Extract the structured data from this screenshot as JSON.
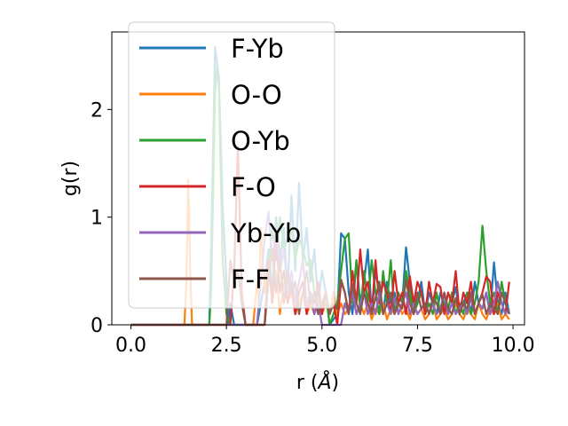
{
  "chart_data": {
    "type": "line",
    "title": "",
    "xlabel": "r (",
    "xlabel_unit": "Å",
    "xlabel_close": ")",
    "ylabel": "g(r)",
    "xlim": [
      -0.5,
      10.3
    ],
    "ylim": [
      0,
      2.72
    ],
    "xticks": [
      {
        "value": 0.0,
        "label": "0.0"
      },
      {
        "value": 2.5,
        "label": "2.5"
      },
      {
        "value": 5.0,
        "label": "5.0"
      },
      {
        "value": 7.5,
        "label": "7.5"
      },
      {
        "value": 10.0,
        "label": "10.0"
      }
    ],
    "yticks": [
      {
        "value": 0,
        "label": "0"
      },
      {
        "value": 1,
        "label": "1"
      },
      {
        "value": 2,
        "label": "2"
      }
    ],
    "grid": false,
    "legend_position": "upper-left",
    "series": [
      {
        "name": "F-Yb",
        "color": "#1f77b4",
        "x": [
          0.0,
          2.05,
          2.1,
          2.2,
          2.3,
          2.4,
          2.5,
          2.55,
          2.6,
          2.7,
          3.0,
          3.3,
          3.5,
          3.6,
          3.7,
          3.8,
          3.9,
          4.0,
          4.1,
          4.2,
          4.3,
          4.4,
          4.5,
          4.6,
          4.7,
          4.8,
          4.9,
          5.0,
          5.1,
          5.2,
          5.4,
          5.5,
          5.6,
          5.7,
          5.8,
          5.9,
          6.0,
          6.1,
          6.2,
          6.3,
          6.4,
          6.5,
          6.6,
          6.7,
          6.8,
          6.9,
          7.0,
          7.1,
          7.2,
          7.3,
          7.4,
          7.5,
          7.6,
          7.7,
          7.8,
          7.9,
          8.0,
          8.1,
          8.2,
          8.3,
          8.4,
          8.5,
          8.6,
          8.7,
          8.8,
          8.9,
          9.0,
          9.1,
          9.2,
          9.3,
          9.4,
          9.5,
          9.6,
          9.7,
          9.8,
          9.9
        ],
        "values": [
          0,
          0,
          0.7,
          2.58,
          2.3,
          1.1,
          0.4,
          0.0,
          0.2,
          0.0,
          0.0,
          0.0,
          0.4,
          0.7,
          0.3,
          1.0,
          0.6,
          0.9,
          0.3,
          1.2,
          0.5,
          1.32,
          0.6,
          0.9,
          0.4,
          0.7,
          0.2,
          0.5,
          0.3,
          0.0,
          0.1,
          0.85,
          0.8,
          0.3,
          0.1,
          0.6,
          0.2,
          0.4,
          0.7,
          0.1,
          0.5,
          0.3,
          0.1,
          0.4,
          0.2,
          0.3,
          0.1,
          0.2,
          0.72,
          0.4,
          0.1,
          0.2,
          0.4,
          0.1,
          0.3,
          0.2,
          0.1,
          0.3,
          0.2,
          0.1,
          0.2,
          0.35,
          0.1,
          0.2,
          0.3,
          0.1,
          0.4,
          0.2,
          0.15,
          0.3,
          0.1,
          0.58,
          0.2,
          0.1,
          0.3,
          0.1
        ]
      },
      {
        "name": "O-O",
        "color": "#ff7f0e",
        "x": [
          0.0,
          1.4,
          1.45,
          1.5,
          1.55,
          1.6,
          3.2,
          3.3,
          3.35,
          3.4,
          3.5,
          3.6,
          3.7,
          3.8,
          3.9,
          4.0,
          4.1,
          4.2,
          4.3,
          4.4,
          4.5,
          4.6,
          4.7,
          4.8,
          4.9,
          5.0,
          5.1,
          5.2,
          5.3,
          5.4,
          5.5,
          5.6,
          5.7,
          5.8,
          5.9,
          6.0,
          6.1,
          6.2,
          6.3,
          6.4,
          6.5,
          6.6,
          6.7,
          6.8,
          6.9,
          7.0,
          7.1,
          7.2,
          7.3,
          7.4,
          7.5,
          7.6,
          7.7,
          7.8,
          7.9,
          8.0,
          8.1,
          8.2,
          8.3,
          8.4,
          8.5,
          8.6,
          8.7,
          8.8,
          8.9,
          9.0,
          9.1,
          9.2,
          9.3,
          9.4,
          9.5,
          9.6,
          9.7,
          9.8,
          9.9
        ],
        "values": [
          0,
          0,
          0.4,
          1.35,
          0.5,
          0,
          0,
          0.4,
          0.2,
          0.9,
          0.3,
          0.6,
          0.2,
          0.5,
          0.1,
          0.4,
          0.2,
          0.3,
          0.1,
          0.2,
          0.3,
          0.1,
          0.2,
          0.1,
          0.25,
          0.1,
          0.2,
          0.1,
          0.3,
          0.1,
          0.2,
          0.1,
          0.15,
          0.3,
          0.1,
          0.2,
          0.1,
          0.2,
          0.05,
          0.15,
          0.1,
          0.2,
          0.05,
          0.15,
          0.1,
          0.2,
          0.1,
          0.15,
          0.05,
          0.2,
          0.1,
          0.15,
          0.05,
          0.1,
          0.2,
          0.05,
          0.1,
          0.15,
          0.05,
          0.1,
          0.2,
          0.1,
          0.05,
          0.15,
          0.1,
          0.05,
          0.2,
          0.1,
          0.05,
          0.15,
          0.1,
          0.2,
          0.05,
          0.1,
          0.05
        ]
      },
      {
        "name": "O-Yb",
        "color": "#2ca02c",
        "x": [
          0.0,
          2.05,
          2.1,
          2.15,
          2.2,
          2.25,
          2.3,
          2.4,
          2.5,
          2.6,
          2.7,
          3.0,
          3.5,
          3.6,
          3.7,
          3.8,
          3.9,
          4.0,
          4.1,
          4.2,
          4.3,
          4.4,
          4.5,
          4.6,
          4.7,
          4.8,
          4.9,
          5.0,
          5.1,
          5.2,
          5.3,
          5.4,
          5.5,
          5.6,
          5.7,
          5.8,
          5.9,
          6.0,
          6.1,
          6.2,
          6.3,
          6.4,
          6.5,
          6.6,
          6.7,
          6.8,
          6.9,
          7.0,
          7.1,
          7.2,
          7.3,
          7.4,
          7.5,
          7.6,
          7.7,
          7.8,
          7.9,
          8.0,
          8.1,
          8.2,
          8.3,
          8.4,
          8.5,
          8.6,
          8.7,
          8.8,
          8.9,
          9.0,
          9.1,
          9.2,
          9.3,
          9.4,
          9.5,
          9.6,
          9.7,
          9.8,
          9.9
        ],
        "values": [
          0,
          0,
          0.3,
          1.2,
          2.15,
          2.4,
          2.2,
          0.6,
          0.1,
          0.0,
          0.0,
          0.0,
          0.0,
          0.5,
          0.9,
          0.6,
          1.0,
          0.7,
          0.8,
          0.9,
          0.6,
          0.8,
          0.7,
          0.55,
          0.6,
          0.3,
          0.2,
          0.1,
          0.3,
          0.0,
          0.1,
          0.2,
          0.5,
          0.8,
          0.85,
          0.2,
          0.6,
          0.1,
          0.5,
          0.2,
          0.6,
          0.3,
          0.1,
          0.5,
          0.2,
          0.6,
          0.1,
          0.3,
          0.2,
          0.5,
          0.3,
          0.1,
          0.2,
          0.3,
          0.1,
          0.2,
          0.1,
          0.3,
          0.1,
          0.2,
          0.15,
          0.3,
          0.1,
          0.2,
          0.1,
          0.3,
          0.1,
          0.2,
          0.4,
          0.92,
          0.5,
          0.2,
          0.3,
          0.1,
          0.4,
          0.2,
          0.1
        ]
      },
      {
        "name": "F-O",
        "color": "#d62728",
        "x": [
          0.0,
          2.6,
          2.7,
          2.8,
          2.85,
          2.9,
          3.0,
          3.5,
          3.6,
          3.7,
          3.8,
          3.9,
          4.0,
          4.1,
          4.2,
          4.3,
          4.4,
          4.5,
          4.6,
          4.7,
          4.8,
          4.9,
          5.0,
          5.1,
          5.2,
          5.3,
          5.4,
          5.5,
          5.6,
          5.7,
          5.8,
          5.9,
          6.0,
          6.1,
          6.2,
          6.3,
          6.4,
          6.5,
          6.6,
          6.7,
          6.8,
          6.9,
          7.0,
          7.1,
          7.2,
          7.3,
          7.4,
          7.5,
          7.6,
          7.7,
          7.8,
          7.9,
          8.0,
          8.1,
          8.2,
          8.3,
          8.4,
          8.5,
          8.6,
          8.7,
          8.8,
          8.9,
          9.0,
          9.1,
          9.2,
          9.3,
          9.4,
          9.5,
          9.6,
          9.7,
          9.8,
          9.9
        ],
        "values": [
          0,
          0,
          0.5,
          1.65,
          1.0,
          0.3,
          0.0,
          0.0,
          0.6,
          0.2,
          0.8,
          0.3,
          0.5,
          0.2,
          0.4,
          0.1,
          0.3,
          0.4,
          0.1,
          0.3,
          0.2,
          0.4,
          0.1,
          0.3,
          0.1,
          0.2,
          0.0,
          0.4,
          0.3,
          0.1,
          0.5,
          0.2,
          0.7,
          0.3,
          0.4,
          0.1,
          0.6,
          0.2,
          0.4,
          0.3,
          0.1,
          0.5,
          0.2,
          0.3,
          0.1,
          0.45,
          0.2,
          0.4,
          0.3,
          0.1,
          0.4,
          0.2,
          0.38,
          0.35,
          0.1,
          0.3,
          0.2,
          0.5,
          0.1,
          0.3,
          0.2,
          0.4,
          0.1,
          0.2,
          0.3,
          0.45,
          0.4,
          0.1,
          0.3,
          0.2,
          0.1,
          0.4
        ]
      },
      {
        "name": "Yb-Yb",
        "color": "#9467bd",
        "x": [
          0.0,
          3.3,
          3.4,
          3.5,
          3.6,
          3.7,
          3.8,
          3.9,
          4.0,
          4.1,
          4.2,
          4.3,
          4.4,
          4.5,
          4.6,
          4.7,
          4.8,
          4.9,
          5.0,
          5.5,
          5.6,
          5.7,
          5.8,
          5.9,
          6.0,
          6.1,
          6.2,
          6.3,
          6.4,
          6.5,
          6.6,
          6.7,
          6.8,
          6.9,
          7.0,
          7.1,
          7.2,
          7.3,
          7.4,
          7.5,
          7.6,
          7.7,
          7.8,
          7.9,
          8.0,
          8.1,
          8.2,
          8.3,
          8.4,
          8.5,
          8.6,
          8.7,
          8.8,
          8.9,
          9.0,
          9.1,
          9.2,
          9.3,
          9.4,
          9.5,
          9.6,
          9.7,
          9.8,
          9.9
        ],
        "values": [
          0,
          0,
          0.4,
          0.8,
          1.05,
          0.6,
          0.9,
          0.5,
          0.7,
          0.3,
          0.5,
          0.2,
          0.4,
          0.6,
          0.2,
          0.3,
          0.1,
          0.2,
          0.0,
          0.0,
          0.2,
          0.1,
          0.3,
          0.1,
          0.2,
          0.3,
          0.1,
          0.2,
          0.1,
          0.3,
          0.1,
          0.2,
          0.1,
          0.25,
          0.1,
          0.2,
          0.3,
          0.1,
          0.2,
          0.1,
          0.15,
          0.2,
          0.1,
          0.2,
          0.1,
          0.15,
          0.3,
          0.1,
          0.2,
          0.1,
          0.15,
          0.2,
          0.1,
          0.25,
          0.1,
          0.2,
          0.15,
          0.3,
          0.1,
          0.2,
          0.4,
          0.2,
          0.1,
          0.15
        ]
      },
      {
        "name": "F-F",
        "color": "#8c564b",
        "x": [
          0.0,
          2.5,
          2.6,
          2.7,
          2.8,
          2.9,
          3.0,
          3.5,
          3.6,
          3.7,
          3.8,
          3.9,
          4.0,
          4.1,
          4.2,
          4.3,
          4.4,
          4.5,
          4.6,
          4.7,
          4.8,
          4.9,
          5.0,
          5.1,
          5.2,
          5.3,
          5.4,
          5.5,
          5.6,
          5.7,
          5.8,
          5.9,
          6.0,
          6.1,
          6.2,
          6.3,
          6.4,
          6.5,
          6.6,
          6.7,
          6.8,
          6.9,
          7.0,
          7.1,
          7.2,
          7.3,
          7.4,
          7.5,
          7.6,
          7.7,
          7.8,
          7.9,
          8.0,
          8.1,
          8.2,
          8.3,
          8.4,
          8.5,
          8.6,
          8.7,
          8.8,
          8.9,
          9.0,
          9.1,
          9.2,
          9.3,
          9.4,
          9.5,
          9.6,
          9.7,
          9.8,
          9.9
        ],
        "values": [
          0,
          0,
          0.6,
          0.4,
          0.5,
          0.2,
          0.0,
          0.0,
          0.4,
          0.7,
          0.3,
          0.6,
          0.2,
          0.5,
          0.3,
          0.4,
          0.1,
          0.3,
          0.5,
          0.2,
          0.3,
          0.1,
          0.2,
          0.3,
          0.1,
          0.2,
          0.15,
          0.42,
          0.3,
          0.1,
          0.38,
          0.2,
          0.1,
          0.3,
          0.2,
          0.1,
          0.25,
          0.4,
          0.1,
          0.2,
          0.3,
          0.1,
          0.2,
          0.15,
          0.42,
          0.2,
          0.1,
          0.3,
          0.15,
          0.2,
          0.1,
          0.25,
          0.2,
          0.1,
          0.3,
          0.15,
          0.1,
          0.25,
          0.1,
          0.2,
          0.15,
          0.3,
          0.1,
          0.2,
          0.28,
          0.1,
          0.2,
          0.15,
          0.1,
          0.3,
          0.2,
          0.1
        ]
      }
    ]
  }
}
